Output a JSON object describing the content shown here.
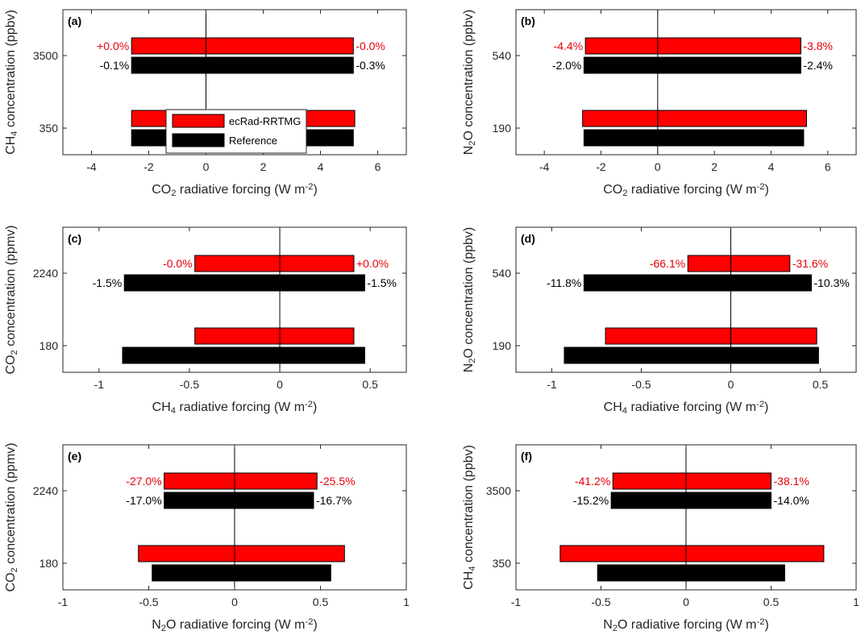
{
  "colors": {
    "model": "#ff0000",
    "reference": "#000000",
    "pct_model": "#e8000b",
    "pct_reference": "#000000"
  },
  "legend": {
    "model_label": "ecRad-RRTMG",
    "reference_label": "Reference",
    "placement": "inside panel (a), lower-middle"
  },
  "chart_data": [
    {
      "type": "bar",
      "orientation": "horizontal",
      "panel_label": "(a)",
      "xlabel": {
        "gas": "CO",
        "sub": "2",
        "rest": " radiative forcing (W m",
        "sup": "-2",
        "close": ")"
      },
      "ylabel": {
        "gas": "CH",
        "sub": "4",
        "rest": " concentration (ppbv)"
      },
      "xlim": [
        -5,
        7
      ],
      "xticks": [
        -4,
        -2,
        0,
        2,
        4,
        6
      ],
      "xtick_labels": [
        "-4",
        "-2",
        "0",
        "2",
        "4",
        "6"
      ],
      "ytick_labels": [
        "3500",
        "350"
      ],
      "grid": false,
      "legend": true,
      "groups": [
        {
          "category": "3500",
          "model": {
            "min": -2.6,
            "max": 5.15,
            "pct_left": "+0.0%",
            "pct_right": "-0.0%"
          },
          "reference": {
            "min": -2.6,
            "max": 5.15,
            "pct_left": "-0.1%",
            "pct_right": "-0.3%"
          }
        },
        {
          "category": "350",
          "model": {
            "min": -2.6,
            "max": 5.2,
            "pct_left": "",
            "pct_right": ""
          },
          "reference": {
            "min": -2.6,
            "max": 5.15,
            "pct_left": "",
            "pct_right": ""
          }
        }
      ]
    },
    {
      "type": "bar",
      "orientation": "horizontal",
      "panel_label": "(b)",
      "xlabel": {
        "gas": "CO",
        "sub": "2",
        "rest": " radiative forcing (W m",
        "sup": "-2",
        "close": ")"
      },
      "ylabel": {
        "gas": "N",
        "sub": "2",
        "rest": "O concentration (ppbv)"
      },
      "xlim": [
        -5,
        7
      ],
      "xticks": [
        -4,
        -2,
        0,
        2,
        4,
        6
      ],
      "xtick_labels": [
        "-4",
        "-2",
        "0",
        "2",
        "4",
        "6"
      ],
      "ytick_labels": [
        "540",
        "190"
      ],
      "grid": false,
      "legend": false,
      "groups": [
        {
          "category": "540",
          "model": {
            "min": -2.55,
            "max": 5.05,
            "pct_left": "-4.4%",
            "pct_right": "-3.8%"
          },
          "reference": {
            "min": -2.6,
            "max": 5.05,
            "pct_left": "-2.0%",
            "pct_right": "-2.4%"
          }
        },
        {
          "category": "190",
          "model": {
            "min": -2.65,
            "max": 5.25,
            "pct_left": "",
            "pct_right": ""
          },
          "reference": {
            "min": -2.6,
            "max": 5.15,
            "pct_left": "",
            "pct_right": ""
          }
        }
      ]
    },
    {
      "type": "bar",
      "orientation": "horizontal",
      "panel_label": "(c)",
      "xlabel": {
        "gas": "CH",
        "sub": "4",
        "rest": " radiative forcing (W m",
        "sup": "-2",
        "close": ")"
      },
      "ylabel": {
        "gas": "CO",
        "sub": "2",
        "rest": " concentration (ppmv)"
      },
      "xlim": [
        -1.2,
        0.7
      ],
      "xticks": [
        -1,
        -0.5,
        0,
        0.5
      ],
      "xtick_labels": [
        "-1",
        "-0.5",
        "0",
        "0.5"
      ],
      "ytick_labels": [
        "2240",
        "180"
      ],
      "grid": false,
      "legend": false,
      "groups": [
        {
          "category": "2240",
          "model": {
            "min": -0.47,
            "max": 0.41,
            "pct_left": "-0.0%",
            "pct_right": "+0.0%"
          },
          "reference": {
            "min": -0.86,
            "max": 0.47,
            "pct_left": "-1.5%",
            "pct_right": "-1.5%"
          }
        },
        {
          "category": "180",
          "model": {
            "min": -0.47,
            "max": 0.41,
            "pct_left": "",
            "pct_right": ""
          },
          "reference": {
            "min": -0.87,
            "max": 0.47,
            "pct_left": "",
            "pct_right": ""
          }
        }
      ]
    },
    {
      "type": "bar",
      "orientation": "horizontal",
      "panel_label": "(d)",
      "xlabel": {
        "gas": "CH",
        "sub": "4",
        "rest": " radiative forcing (W m",
        "sup": "-2",
        "close": ")"
      },
      "ylabel": {
        "gas": "N",
        "sub": "2",
        "rest": "O concentration (ppbv)"
      },
      "xlim": [
        -1.2,
        0.7
      ],
      "xticks": [
        -1,
        -0.5,
        0,
        0.5
      ],
      "xtick_labels": [
        "-1",
        "-0.5",
        "0",
        "0.5"
      ],
      "ytick_labels": [
        "540",
        "190"
      ],
      "grid": false,
      "legend": false,
      "groups": [
        {
          "category": "540",
          "model": {
            "min": -0.24,
            "max": 0.33,
            "pct_left": "-66.1%",
            "pct_right": "-31.6%"
          },
          "reference": {
            "min": -0.82,
            "max": 0.45,
            "pct_left": "-11.8%",
            "pct_right": "-10.3%"
          }
        },
        {
          "category": "190",
          "model": {
            "min": -0.7,
            "max": 0.48,
            "pct_left": "",
            "pct_right": ""
          },
          "reference": {
            "min": -0.93,
            "max": 0.49,
            "pct_left": "",
            "pct_right": ""
          }
        }
      ]
    },
    {
      "type": "bar",
      "orientation": "horizontal",
      "panel_label": "(e)",
      "xlabel": {
        "gas": "N",
        "sub": "2",
        "rest": "O radiative forcing (W m",
        "sup": "-2",
        "close": ")"
      },
      "ylabel": {
        "gas": "CO",
        "sub": "2",
        "rest": " concentration (ppmv)"
      },
      "xlim": [
        -1,
        1
      ],
      "xticks": [
        -1,
        -0.5,
        0,
        0.5,
        1
      ],
      "xtick_labels": [
        "-1",
        "-0.5",
        "0",
        "0.5",
        "1"
      ],
      "ytick_labels": [
        "2240",
        "180"
      ],
      "grid": false,
      "legend": false,
      "groups": [
        {
          "category": "2240",
          "model": {
            "min": -0.41,
            "max": 0.48,
            "pct_left": "-27.0%",
            "pct_right": "-25.5%"
          },
          "reference": {
            "min": -0.41,
            "max": 0.46,
            "pct_left": "-17.0%",
            "pct_right": "-16.7%"
          }
        },
        {
          "category": "180",
          "model": {
            "min": -0.56,
            "max": 0.64,
            "pct_left": "",
            "pct_right": ""
          },
          "reference": {
            "min": -0.48,
            "max": 0.56,
            "pct_left": "",
            "pct_right": ""
          }
        }
      ]
    },
    {
      "type": "bar",
      "orientation": "horizontal",
      "panel_label": "(f)",
      "xlabel": {
        "gas": "N",
        "sub": "2",
        "rest": "O radiative forcing (W m",
        "sup": "-2",
        "close": ")"
      },
      "ylabel": {
        "gas": "CH",
        "sub": "4",
        "rest": " concentration (ppbv)"
      },
      "xlim": [
        -1,
        1
      ],
      "xticks": [
        -1,
        -0.5,
        0,
        0.5,
        1
      ],
      "xtick_labels": [
        "-1",
        "-0.5",
        "0",
        "0.5",
        "1"
      ],
      "ytick_labels": [
        "3500",
        "350"
      ],
      "grid": false,
      "legend": false,
      "groups": [
        {
          "category": "3500",
          "model": {
            "min": -0.43,
            "max": 0.5,
            "pct_left": "-41.2%",
            "pct_right": "-38.1%"
          },
          "reference": {
            "min": -0.44,
            "max": 0.5,
            "pct_left": "-15.2%",
            "pct_right": "-14.0%"
          }
        },
        {
          "category": "350",
          "model": {
            "min": -0.74,
            "max": 0.81,
            "pct_left": "",
            "pct_right": ""
          },
          "reference": {
            "min": -0.52,
            "max": 0.58,
            "pct_left": "",
            "pct_right": ""
          }
        }
      ]
    }
  ]
}
